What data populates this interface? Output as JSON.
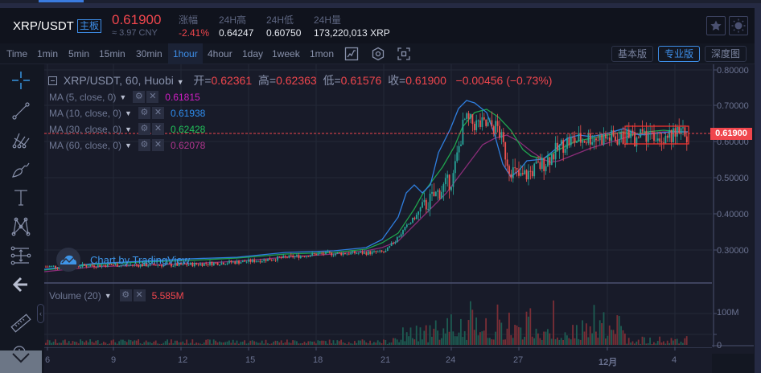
{
  "header": {
    "pair": "XRP/USDT",
    "board_tag": "主板",
    "last_price": "0.61900",
    "cny_price": "≈ 3.97 CNY",
    "stats": [
      {
        "label": "涨幅",
        "value": "-2.41%",
        "negative": true
      },
      {
        "label": "24H高",
        "value": "0.64247",
        "negative": false
      },
      {
        "label": "24H低",
        "value": "0.60750",
        "negative": false
      },
      {
        "label": "24H量",
        "value": "173,220,013 XRP",
        "negative": false
      }
    ],
    "favorite_icon": "star-icon",
    "theme_icon": "sun-icon"
  },
  "toolbar": {
    "timeframes": [
      "Time",
      "1min",
      "5min",
      "15min",
      "30min",
      "1hour",
      "4hour",
      "1day",
      "1week",
      "1mon"
    ],
    "active_timeframe": "1hour",
    "icons": [
      "indicator-chart-icon",
      "settings-hex-icon",
      "fullscreen-icon"
    ],
    "views": [
      "基本版",
      "专业版",
      "深度图"
    ],
    "active_view": "专业版"
  },
  "left_tools": [
    "crosshair-icon",
    "trend-line-icon",
    "pitchfork-icon",
    "brush-icon",
    "text-icon",
    "pattern-icon",
    "measure-lines-icon",
    "back-arrow-icon",
    "ruler-icon",
    "zoom-in-icon"
  ],
  "legend": {
    "title": "XRP/USDT, 60, Huobi",
    "open_label": "开=",
    "open": "0.62361",
    "high_label": "高=",
    "high": "0.62363",
    "low_label": "低=",
    "low": "0.61576",
    "close_label": "收=",
    "close": "0.61900",
    "change": "−0.00456 (−0.73%)"
  },
  "moving_averages": [
    {
      "label": "MA (5, close, 0)",
      "value": "0.61815",
      "color": "#d11fc5"
    },
    {
      "label": "MA (10, close, 0)",
      "value": "0.61938",
      "color": "#2f8ef0"
    },
    {
      "label": "MA (30, close, 0)",
      "value": "0.62428",
      "color": "#21c45a"
    },
    {
      "label": "MA (60, close, 0)",
      "value": "0.62078",
      "color": "#a0307f"
    }
  ],
  "watermark": "Chart by TradingView",
  "volume": {
    "label": "Volume (20)",
    "value": "5.585M"
  },
  "price_axis": [
    "0.80000",
    "0.70000",
    "0.60000",
    "0.50000",
    "0.40000",
    "0.30000"
  ],
  "current_price_label": "0.61900",
  "volume_axis": [
    "100M",
    "0"
  ],
  "time_axis": [
    "6",
    "9",
    "12",
    "15",
    "18",
    "21",
    "24",
    "27",
    "12月",
    "4"
  ],
  "colors": {
    "up": "#26a69a",
    "down": "#ef5350",
    "accent": "#3e8ee8",
    "negative": "#f0464d"
  },
  "chart_data": {
    "type": "candlestick",
    "title": "XRP/USDT, 60, Huobi",
    "x_ticks": [
      "6",
      "9",
      "12",
      "15",
      "18",
      "21",
      "24",
      "27",
      "12月",
      "4"
    ],
    "ylim": [
      0.25,
      0.81
    ],
    "y_ticks": [
      0.3,
      0.4,
      0.5,
      0.6,
      0.7,
      0.8
    ],
    "close_path_approx": {
      "x": [
        "6",
        "9",
        "12",
        "15",
        "18",
        "21",
        "22",
        "23",
        "24",
        "24.5",
        "25",
        "26",
        "26.5",
        "27",
        "28",
        "29",
        "30",
        "12月",
        "2",
        "3",
        "4",
        "4.5"
      ],
      "y": [
        0.255,
        0.26,
        0.26,
        0.27,
        0.29,
        0.295,
        0.37,
        0.44,
        0.5,
        0.66,
        0.65,
        0.64,
        0.53,
        0.5,
        0.54,
        0.6,
        0.61,
        0.64,
        0.61,
        0.62,
        0.62,
        0.619
      ]
    },
    "volume_ylim": [
      0,
      150
    ],
    "volume_unit": "M"
  }
}
